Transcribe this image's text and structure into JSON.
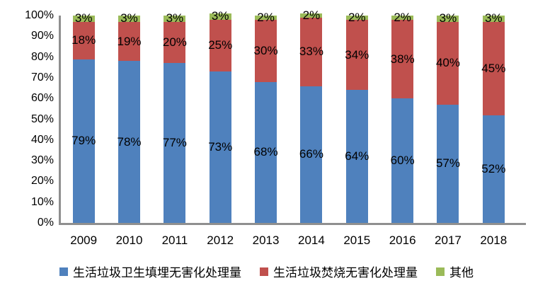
{
  "chart_data": {
    "type": "bar",
    "stacked": true,
    "percent_stacked": true,
    "title": "",
    "categories": [
      "2009",
      "2010",
      "2011",
      "2012",
      "2013",
      "2014",
      "2015",
      "2016",
      "2017",
      "2018"
    ],
    "series": [
      {
        "id": "landfill",
        "name": "生活垃圾卫生填埋无害化处理量",
        "color": "#4f81bd",
        "values": [
          79,
          78,
          77,
          73,
          68,
          66,
          64,
          60,
          57,
          52
        ]
      },
      {
        "id": "incineration",
        "name": "生活垃圾焚烧无害化处理量",
        "color": "#c0504d",
        "values": [
          18,
          19,
          20,
          25,
          30,
          33,
          34,
          38,
          40,
          45
        ]
      },
      {
        "id": "other",
        "name": "其他",
        "color": "#9bbb59",
        "values": [
          3,
          3,
          3,
          3,
          2,
          2,
          2,
          2,
          3,
          3
        ]
      }
    ],
    "y_axis": {
      "min": 0,
      "max": 100,
      "step": 10,
      "suffix": "%"
    },
    "data_labels": true,
    "data_label_suffix": "%",
    "grid": false,
    "legend_position": "bottom",
    "axis_color": "#8f8f8f",
    "label_color": "#000000",
    "background": "#ffffff"
  }
}
